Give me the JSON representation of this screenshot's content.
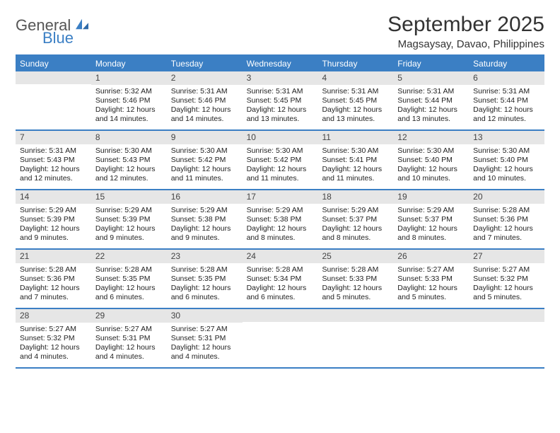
{
  "brand": {
    "word1": "General",
    "word2": "Blue"
  },
  "title": "September 2025",
  "location": "Magsaysay, Davao, Philippines",
  "colors": {
    "accent": "#3b7fc4",
    "header_text": "#ffffff",
    "daynum_bg": "#e6e6e6",
    "text": "#222222",
    "page_bg": "#ffffff"
  },
  "typography": {
    "title_fontsize_pt": 22,
    "location_fontsize_pt": 11,
    "dayhead_fontsize_pt": 9,
    "cell_fontsize_pt": 8
  },
  "layout": {
    "columns": 7,
    "rows": 5,
    "first_weekday_col": 1
  },
  "day_headers": [
    "Sunday",
    "Monday",
    "Tuesday",
    "Wednesday",
    "Thursday",
    "Friday",
    "Saturday"
  ],
  "days": [
    {
      "n": 1,
      "sunrise": "5:32 AM",
      "sunset": "5:46 PM",
      "daylight": "12 hours and 14 minutes."
    },
    {
      "n": 2,
      "sunrise": "5:31 AM",
      "sunset": "5:46 PM",
      "daylight": "12 hours and 14 minutes."
    },
    {
      "n": 3,
      "sunrise": "5:31 AM",
      "sunset": "5:45 PM",
      "daylight": "12 hours and 13 minutes."
    },
    {
      "n": 4,
      "sunrise": "5:31 AM",
      "sunset": "5:45 PM",
      "daylight": "12 hours and 13 minutes."
    },
    {
      "n": 5,
      "sunrise": "5:31 AM",
      "sunset": "5:44 PM",
      "daylight": "12 hours and 13 minutes."
    },
    {
      "n": 6,
      "sunrise": "5:31 AM",
      "sunset": "5:44 PM",
      "daylight": "12 hours and 12 minutes."
    },
    {
      "n": 7,
      "sunrise": "5:31 AM",
      "sunset": "5:43 PM",
      "daylight": "12 hours and 12 minutes."
    },
    {
      "n": 8,
      "sunrise": "5:30 AM",
      "sunset": "5:43 PM",
      "daylight": "12 hours and 12 minutes."
    },
    {
      "n": 9,
      "sunrise": "5:30 AM",
      "sunset": "5:42 PM",
      "daylight": "12 hours and 11 minutes."
    },
    {
      "n": 10,
      "sunrise": "5:30 AM",
      "sunset": "5:42 PM",
      "daylight": "12 hours and 11 minutes."
    },
    {
      "n": 11,
      "sunrise": "5:30 AM",
      "sunset": "5:41 PM",
      "daylight": "12 hours and 11 minutes."
    },
    {
      "n": 12,
      "sunrise": "5:30 AM",
      "sunset": "5:40 PM",
      "daylight": "12 hours and 10 minutes."
    },
    {
      "n": 13,
      "sunrise": "5:30 AM",
      "sunset": "5:40 PM",
      "daylight": "12 hours and 10 minutes."
    },
    {
      "n": 14,
      "sunrise": "5:29 AM",
      "sunset": "5:39 PM",
      "daylight": "12 hours and 9 minutes."
    },
    {
      "n": 15,
      "sunrise": "5:29 AM",
      "sunset": "5:39 PM",
      "daylight": "12 hours and 9 minutes."
    },
    {
      "n": 16,
      "sunrise": "5:29 AM",
      "sunset": "5:38 PM",
      "daylight": "12 hours and 9 minutes."
    },
    {
      "n": 17,
      "sunrise": "5:29 AM",
      "sunset": "5:38 PM",
      "daylight": "12 hours and 8 minutes."
    },
    {
      "n": 18,
      "sunrise": "5:29 AM",
      "sunset": "5:37 PM",
      "daylight": "12 hours and 8 minutes."
    },
    {
      "n": 19,
      "sunrise": "5:29 AM",
      "sunset": "5:37 PM",
      "daylight": "12 hours and 8 minutes."
    },
    {
      "n": 20,
      "sunrise": "5:28 AM",
      "sunset": "5:36 PM",
      "daylight": "12 hours and 7 minutes."
    },
    {
      "n": 21,
      "sunrise": "5:28 AM",
      "sunset": "5:36 PM",
      "daylight": "12 hours and 7 minutes."
    },
    {
      "n": 22,
      "sunrise": "5:28 AM",
      "sunset": "5:35 PM",
      "daylight": "12 hours and 6 minutes."
    },
    {
      "n": 23,
      "sunrise": "5:28 AM",
      "sunset": "5:35 PM",
      "daylight": "12 hours and 6 minutes."
    },
    {
      "n": 24,
      "sunrise": "5:28 AM",
      "sunset": "5:34 PM",
      "daylight": "12 hours and 6 minutes."
    },
    {
      "n": 25,
      "sunrise": "5:28 AM",
      "sunset": "5:33 PM",
      "daylight": "12 hours and 5 minutes."
    },
    {
      "n": 26,
      "sunrise": "5:27 AM",
      "sunset": "5:33 PM",
      "daylight": "12 hours and 5 minutes."
    },
    {
      "n": 27,
      "sunrise": "5:27 AM",
      "sunset": "5:32 PM",
      "daylight": "12 hours and 5 minutes."
    },
    {
      "n": 28,
      "sunrise": "5:27 AM",
      "sunset": "5:32 PM",
      "daylight": "12 hours and 4 minutes."
    },
    {
      "n": 29,
      "sunrise": "5:27 AM",
      "sunset": "5:31 PM",
      "daylight": "12 hours and 4 minutes."
    },
    {
      "n": 30,
      "sunrise": "5:27 AM",
      "sunset": "5:31 PM",
      "daylight": "12 hours and 4 minutes."
    }
  ],
  "labels": {
    "sunrise": "Sunrise:",
    "sunset": "Sunset:",
    "daylight": "Daylight:"
  }
}
